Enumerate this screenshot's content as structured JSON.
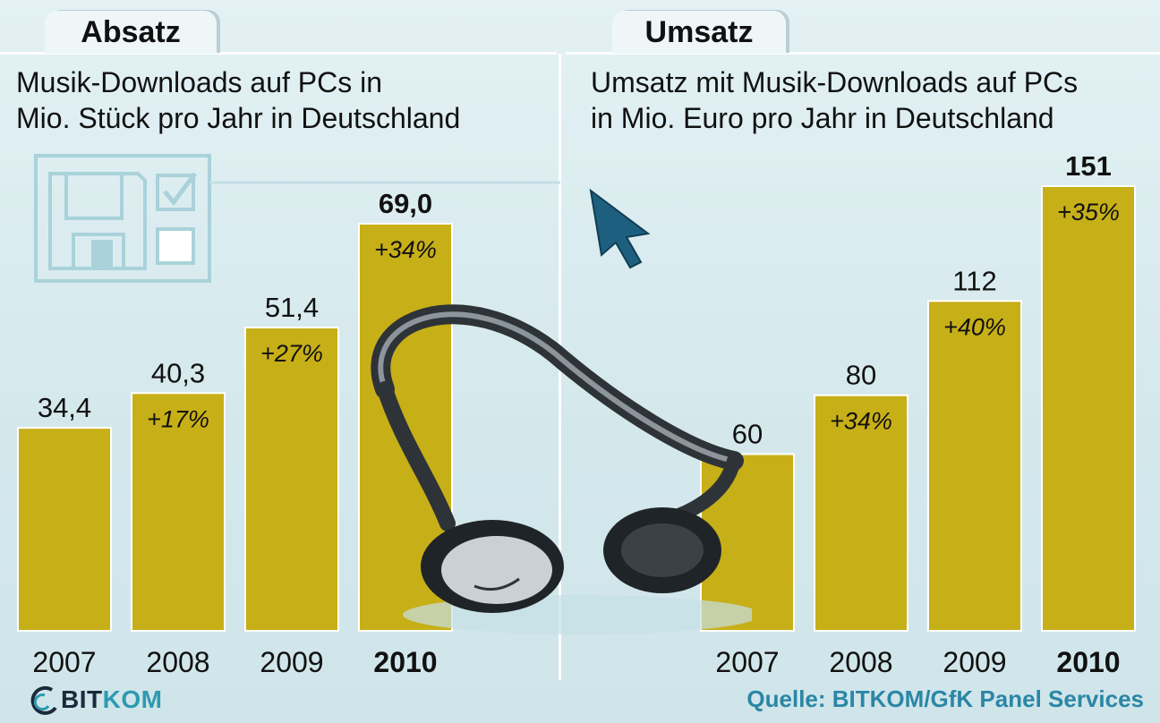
{
  "tabs": {
    "left_label": "Absatz",
    "right_label": "Umsatz"
  },
  "subtitles": {
    "left_line1": "Musik-Downloads auf PCs in",
    "left_line2": "Mio. Stück pro Jahr in Deutschland",
    "right_line1": "Umsatz mit Musik-Downloads auf PCs",
    "right_line2": "in Mio. Euro pro Jahr in Deutschland"
  },
  "colors": {
    "bar": "#c7af18",
    "background": "#d9ebee",
    "source_text": "#2b86a6"
  },
  "chart_data": [
    {
      "type": "bar",
      "title": "Absatz",
      "subtitle": "Musik-Downloads auf PCs in Mio. Stück pro Jahr in Deutschland",
      "categories": [
        "2007",
        "2008",
        "2009",
        "2010"
      ],
      "values": [
        34.4,
        40.3,
        51.4,
        69.0
      ],
      "value_labels": [
        "34,4",
        "40,3",
        "51,4",
        "69,0"
      ],
      "change_labels": [
        "",
        "+17%",
        "+27%",
        "+34%"
      ],
      "highlight": "2010",
      "ylim": [
        0,
        69.0
      ],
      "grid": false
    },
    {
      "type": "bar",
      "title": "Umsatz",
      "subtitle": "Umsatz mit Musik-Downloads auf PCs in Mio. Euro pro Jahr in Deutschland",
      "categories": [
        "2007",
        "2008",
        "2009",
        "2010"
      ],
      "values": [
        60,
        80,
        112,
        151
      ],
      "value_labels": [
        "60",
        "80",
        "112",
        "151"
      ],
      "change_labels": [
        "",
        "+34%",
        "+40%",
        "+35%"
      ],
      "highlight": "2010",
      "ylim": [
        0,
        151
      ],
      "grid": false
    }
  ],
  "footer": {
    "logo_bit": "BIT",
    "logo_kom": "KOM",
    "source": "Quelle: BITKOM/GfK Panel Services"
  },
  "icons": [
    "floppy-disk-icon",
    "checkbox-icon",
    "cursor-arrow-icon",
    "headphones-illustration",
    "bitkom-logo"
  ]
}
